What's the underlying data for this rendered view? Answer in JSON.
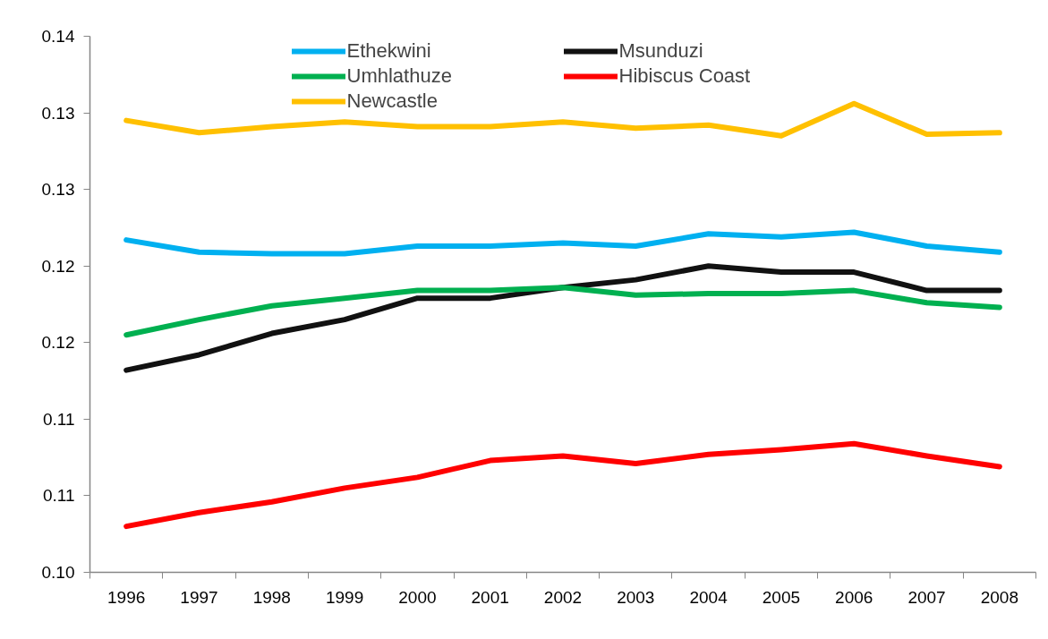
{
  "chart_data": {
    "type": "line",
    "categories": [
      "1996",
      "1997",
      "1998",
      "1999",
      "2000",
      "2001",
      "2002",
      "2003",
      "2004",
      "2005",
      "2006",
      "2007",
      "2008"
    ],
    "series": [
      {
        "name": "Ethekwini",
        "color": "#00b0f0",
        "values": [
          0.1217,
          0.1209,
          0.1208,
          0.1208,
          0.1213,
          0.1213,
          0.1215,
          0.1213,
          0.1221,
          0.1219,
          0.1222,
          0.1213,
          0.1209
        ]
      },
      {
        "name": "Msunduzi",
        "color": "#111111",
        "values": [
          0.1132,
          0.1142,
          0.1156,
          0.1165,
          0.1179,
          0.1179,
          0.1186,
          0.1191,
          0.12,
          0.1196,
          0.1196,
          0.1184,
          0.1184
        ]
      },
      {
        "name": "Umhlathuze",
        "color": "#00b050",
        "values": [
          0.1155,
          0.1165,
          0.1174,
          0.1179,
          0.1184,
          0.1184,
          0.1186,
          0.1181,
          0.1182,
          0.1182,
          0.1184,
          0.1176,
          0.1173
        ]
      },
      {
        "name": "Hibiscus Coast",
        "color": "#ff0000",
        "values": [
          0.103,
          0.1039,
          0.1046,
          0.1055,
          0.1062,
          0.1073,
          0.1076,
          0.1071,
          0.1077,
          0.108,
          0.1084,
          0.1076,
          0.1069
        ]
      },
      {
        "name": "Newcastle",
        "color": "#ffc000",
        "values": [
          0.1295,
          0.1287,
          0.1291,
          0.1294,
          0.1291,
          0.1291,
          0.1294,
          0.129,
          0.1292,
          0.1285,
          0.1306,
          0.1286,
          0.1287
        ]
      }
    ],
    "ylim": [
      0.1,
      0.135
    ],
    "yticks": [
      {
        "value": 0.1,
        "label": "0.10"
      },
      {
        "value": 0.105,
        "label": "0.11"
      },
      {
        "value": 0.11,
        "label": "0.11"
      },
      {
        "value": 0.115,
        "label": "0.12"
      },
      {
        "value": 0.12,
        "label": "0.12"
      },
      {
        "value": 0.125,
        "label": "0.13"
      },
      {
        "value": 0.13,
        "label": "0.13"
      },
      {
        "value": 0.135,
        "label": "0.14"
      }
    ],
    "grid": false,
    "legend": "top",
    "line_style": "solid"
  }
}
